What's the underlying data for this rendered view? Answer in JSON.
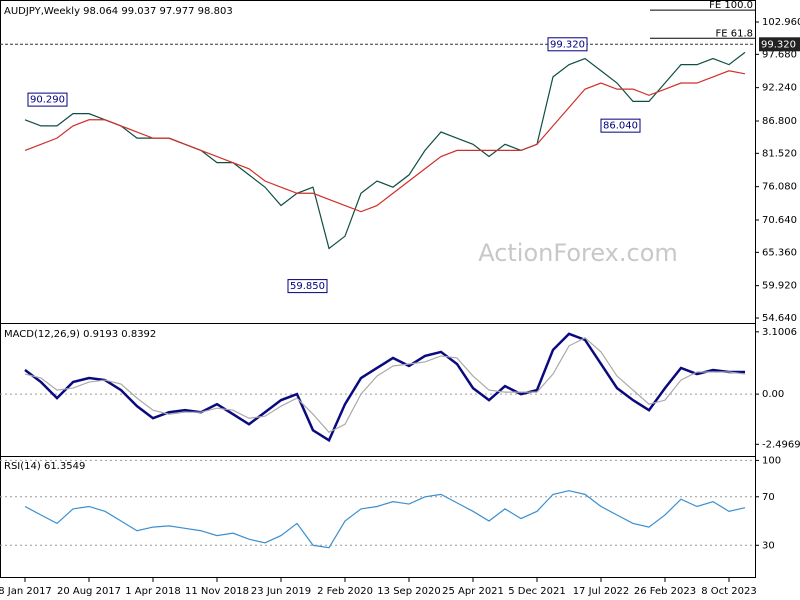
{
  "chart_data": [
    {
      "type": "line",
      "title": "AUDJPY,Weekly  98.064 99.037 97.977 98.803",
      "watermark": "ActionForex.com",
      "categories": [
        "8 Jan 2017",
        null,
        null,
        null,
        "20 Aug 2017",
        null,
        null,
        null,
        "1 Apr 2018",
        null,
        null,
        null,
        "11 Nov 2018",
        null,
        null,
        null,
        "23 Jun 2019",
        null,
        null,
        null,
        "2 Feb 2020",
        null,
        null,
        null,
        "13 Sep 2020",
        null,
        null,
        null,
        "25 Apr 2021",
        null,
        null,
        null,
        "5 Dec 2021",
        null,
        null,
        null,
        "17 Jul 2022",
        null,
        null,
        null,
        "26 Feb 2023",
        null,
        null,
        null,
        "8 Oct 2023",
        null
      ],
      "series": [
        {
          "color": "#0d4f44",
          "values": [
            87,
            86,
            86,
            88,
            88,
            87,
            86,
            84,
            84,
            84,
            83,
            82,
            80,
            80,
            78,
            76,
            73,
            75,
            76,
            66,
            68,
            75,
            77,
            76,
            78,
            82,
            85,
            84,
            83,
            81,
            83,
            82,
            83,
            94,
            96,
            97,
            95,
            93,
            90,
            90,
            93,
            96,
            96,
            97,
            96,
            98
          ]
        },
        {
          "color": "#d0302a",
          "values": [
            82,
            83,
            84,
            86,
            87,
            87,
            86,
            85,
            84,
            84,
            83,
            82,
            81,
            80,
            79,
            77,
            76,
            75,
            75,
            74,
            73,
            72,
            73,
            75,
            77,
            79,
            81,
            82,
            82,
            82,
            82,
            82,
            83,
            86,
            89,
            92,
            93,
            92,
            92,
            91,
            92,
            93,
            93,
            94,
            95,
            94.5
          ]
        }
      ],
      "ylim": [
        53.99,
        106.06
      ],
      "yticks": [
        {
          "value": 102.96,
          "label": "102.960"
        },
        {
          "value": 97.68,
          "label": "97.680"
        },
        {
          "value": 92.24,
          "label": "92.240"
        },
        {
          "value": 86.8,
          "label": "86.800"
        },
        {
          "value": 81.52,
          "label": "81.520"
        },
        {
          "value": 76.08,
          "label": "76.080"
        },
        {
          "value": 70.64,
          "label": "70.640"
        },
        {
          "value": 65.36,
          "label": "65.360"
        },
        {
          "value": 59.92,
          "label": "59.920"
        },
        {
          "value": 54.64,
          "label": "54.640"
        }
      ],
      "annotations": [
        {
          "value": 90.29,
          "label": "90.290"
        },
        {
          "value": 59.85,
          "label": "59.850"
        },
        {
          "value": 99.32,
          "label": "99.320"
        },
        {
          "value": 86.04,
          "label": "86.040"
        }
      ],
      "fe_levels": [
        {
          "value": 104.9,
          "label": "FE 100.0"
        },
        {
          "value": 100.3,
          "label": "FE 61.8"
        }
      ],
      "last_price": {
        "value": 99.32,
        "label": "99.320"
      }
    },
    {
      "type": "line",
      "title": "MACD(12,26,9) 0.9193 0.8392",
      "series": [
        {
          "color": "#0a0a80",
          "values": [
            1.2,
            0.6,
            -0.2,
            0.6,
            0.8,
            0.7,
            0.2,
            -0.6,
            -1.2,
            -0.9,
            -0.8,
            -0.9,
            -0.5,
            -1.0,
            -1.5,
            -0.9,
            -0.3,
            0.0,
            -1.8,
            -2.3,
            -0.5,
            0.8,
            1.3,
            1.8,
            1.4,
            1.9,
            2.1,
            1.5,
            0.3,
            -0.3,
            0.4,
            0.0,
            0.2,
            2.2,
            3.0,
            2.7,
            1.5,
            0.3,
            -0.3,
            -0.8,
            0.3,
            1.3,
            1.0,
            1.2,
            1.1,
            1.1
          ]
        },
        {
          "color": "#aaaaaa",
          "values": [
            1.0,
            0.8,
            0.2,
            0.3,
            0.6,
            0.7,
            0.5,
            -0.2,
            -0.8,
            -1.0,
            -0.9,
            -0.9,
            -0.7,
            -0.8,
            -1.2,
            -1.1,
            -0.6,
            -0.2,
            -1.0,
            -1.9,
            -1.5,
            0.0,
            0.9,
            1.4,
            1.5,
            1.6,
            1.9,
            1.8,
            0.9,
            0.2,
            0.1,
            0.1,
            0.1,
            1.0,
            2.4,
            2.8,
            2.1,
            0.9,
            0.2,
            -0.5,
            -0.3,
            0.7,
            1.1,
            1.1,
            1.1,
            1.0
          ]
        }
      ],
      "ylim": [
        -3.03,
        3.39
      ],
      "yticks": [
        3.1006,
        {
          "value": 0,
          "label": "0.00"
        },
        -2.4969
      ]
    },
    {
      "type": "line",
      "title": "RSI(14) 61.3549",
      "series": [
        {
          "color": "#3a8fd0",
          "values": [
            62,
            55,
            48,
            60,
            62,
            58,
            50,
            42,
            45,
            46,
            44,
            42,
            38,
            40,
            35,
            32,
            38,
            48,
            30,
            28,
            50,
            60,
            62,
            66,
            64,
            70,
            72,
            65,
            58,
            50,
            60,
            52,
            58,
            72,
            75,
            72,
            62,
            55,
            48,
            45,
            55,
            68,
            62,
            66,
            58,
            61
          ]
        }
      ],
      "ylim": [
        3,
        102
      ],
      "yticks": [
        100,
        70,
        30
      ]
    }
  ]
}
